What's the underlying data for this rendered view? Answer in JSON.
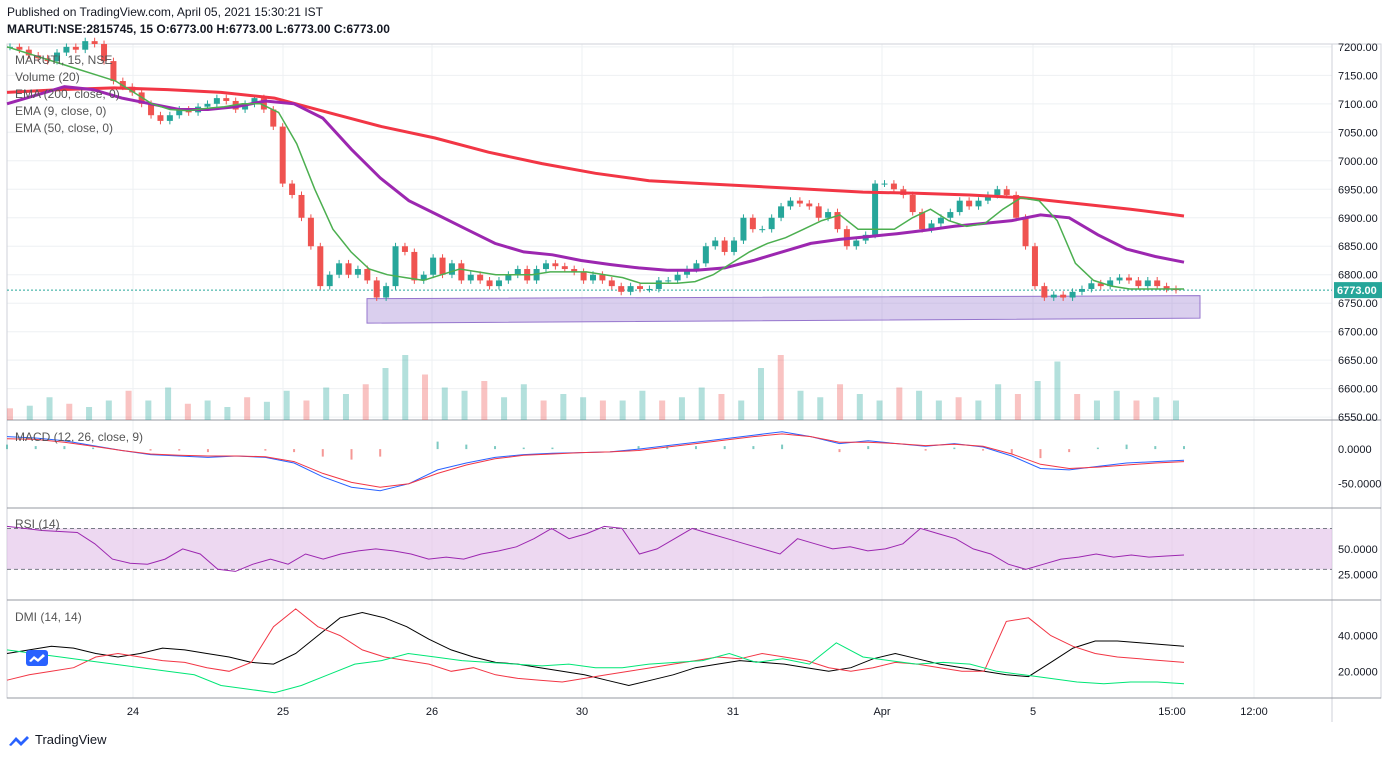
{
  "header": {
    "published": "Published on TradingView.com, April 05, 2021 15:30:21 IST",
    "ohlc": "MARUTI:NSE:2815745, 15 O:6773.00 H:6773.00 L:6773.00 C:6773.00"
  },
  "legend": {
    "symbol": "MARUTI, 15, NSE",
    "volume": "Volume (20)",
    "ema200": "EMA (200, close, 0)",
    "ema9": "EMA (9, close, 0)",
    "ema50": "EMA (50, close, 0)",
    "macd": "MACD (12, 26, close, 9)",
    "rsi": "RSI (14)",
    "dmi": "DMI (14, 14)"
  },
  "footer": {
    "brand": "TradingView"
  },
  "colors": {
    "up": "#26a69a",
    "down": "#ef5350",
    "ema9": "#4caf50",
    "ema50": "#9c27b0",
    "ema200": "#f23645",
    "zone": "#9575cd",
    "rsi_band": "#e1bee7"
  },
  "chart_data": [
    {
      "type": "candlestick",
      "title": "MARUTI, 15, NSE",
      "x_ticks": [
        "24",
        "25",
        "26",
        "30",
        "31",
        "Apr",
        "5",
        "15:00",
        "12:00"
      ],
      "y_ticks": [
        7200,
        7150,
        7100,
        7050,
        7000,
        6950,
        6900,
        6850,
        6800,
        6750,
        6700,
        6650,
        6600,
        6550
      ],
      "y_tick_labels": [
        "7200.00",
        "7150.00",
        "7100.00",
        "7050.00",
        "7000.00",
        "6950.00",
        "6900.00",
        "6850.00",
        "6800.00",
        "6750.00",
        "6700.00",
        "6650.00",
        "6600.00",
        "6550.00"
      ],
      "ylim": [
        6545,
        7205
      ],
      "last_price": 6773,
      "last_price_label": "6773.00",
      "closes": [
        7200,
        7195,
        7185,
        7180,
        7175,
        7190,
        7200,
        7195,
        7210,
        7205,
        7175,
        7140,
        7130,
        7120,
        7100,
        7080,
        7070,
        7080,
        7090,
        7085,
        7095,
        7100,
        7110,
        7105,
        7090,
        7100,
        7110,
        7090,
        7060,
        6960,
        6940,
        6900,
        6850,
        6780,
        6800,
        6820,
        6800,
        6810,
        6790,
        6760,
        6780,
        6850,
        6840,
        6790,
        6800,
        6830,
        6800,
        6820,
        6790,
        6800,
        6790,
        6780,
        6790,
        6800,
        6810,
        6790,
        6810,
        6820,
        6815,
        6810,
        6805,
        6790,
        6800,
        6790,
        6780,
        6770,
        6780,
        6775,
        6775,
        6790,
        6790,
        6800,
        6810,
        6820,
        6850,
        6860,
        6840,
        6860,
        6900,
        6880,
        6880,
        6900,
        6920,
        6930,
        6925,
        6920,
        6900,
        6910,
        6880,
        6850,
        6860,
        6870,
        6960,
        6960,
        6950,
        6940,
        6910,
        6880,
        6890,
        6900,
        6910,
        6930,
        6920,
        6930,
        6940,
        6950,
        6940,
        6900,
        6850,
        6780,
        6760,
        6765,
        6760,
        6770,
        6775,
        6785,
        6780,
        6790,
        6795,
        6790,
        6780,
        6790,
        6780,
        6775,
        6773
      ],
      "ema9": [
        7200,
        7190,
        7180,
        7170,
        7160,
        7150,
        7140,
        7120,
        7100,
        7090,
        7088,
        7092,
        7095,
        7100,
        7100,
        7085,
        7030,
        6950,
        6880,
        6840,
        6810,
        6800,
        6795,
        6790,
        6800,
        6810,
        6805,
        6800,
        6800,
        6800,
        6805,
        6805,
        6805,
        6800,
        6795,
        6785,
        6785,
        6785,
        6788,
        6800,
        6820,
        6840,
        6855,
        6865,
        6880,
        6895,
        6905,
        6880,
        6880,
        6880,
        6900,
        6915,
        6895,
        6885,
        6890,
        6915,
        6935,
        6930,
        6895,
        6820,
        6790,
        6780,
        6775,
        6775,
        6775,
        6775
      ],
      "ema50": [
        7100,
        7115,
        7130,
        7125,
        7110,
        7100,
        7090,
        7090,
        7095,
        7105,
        7100,
        7075,
        7020,
        6970,
        6930,
        6905,
        6880,
        6855,
        6840,
        6835,
        6825,
        6818,
        6812,
        6808,
        6808,
        6812,
        6825,
        6840,
        6855,
        6862,
        6867,
        6872,
        6878,
        6885,
        6890,
        6895,
        6905,
        6900,
        6870,
        6845,
        6832,
        6822
      ],
      "ema200": [
        7120,
        7125,
        7128,
        7125,
        7120,
        7110,
        7085,
        7060,
        7040,
        7015,
        6995,
        6978,
        6965,
        6960,
        6955,
        6950,
        6945,
        6943,
        6940,
        6935,
        6925,
        6915,
        6903
      ],
      "volume_relative": [
        0.18,
        0.22,
        0.35,
        0.25,
        0.2,
        0.3,
        0.45,
        0.3,
        0.5,
        0.25,
        0.3,
        0.2,
        0.35,
        0.28,
        0.45,
        0.3,
        0.5,
        0.4,
        0.55,
        0.8,
        1.0,
        0.7,
        0.5,
        0.45,
        0.6,
        0.35,
        0.55,
        0.3,
        0.4,
        0.35,
        0.3,
        0.3,
        0.45,
        0.3,
        0.35,
        0.5,
        0.4,
        0.3,
        0.8,
        1.0,
        0.45,
        0.35,
        0.55,
        0.4,
        0.3,
        0.5,
        0.45,
        0.3,
        0.35,
        0.3,
        0.55,
        0.4,
        0.6,
        0.9,
        0.4,
        0.3,
        0.45,
        0.3,
        0.35,
        0.3
      ],
      "zone": {
        "from_price_top": 6758,
        "to_price_bottom": 6715,
        "label": ""
      }
    },
    {
      "type": "line",
      "title": "MACD (12, 26, close, 9)",
      "y_ticks": [
        0,
        -50
      ],
      "y_tick_labels": [
        "0.0000",
        "-50.0000"
      ],
      "ylim": [
        -85,
        42
      ],
      "series": [
        {
          "values": [
            18,
            16,
            12,
            5,
            -2,
            -8,
            -10,
            -12,
            -10,
            -12,
            -20,
            -40,
            -55,
            -60,
            -50,
            -30,
            -20,
            -12,
            -8,
            -6,
            -5,
            -4,
            0,
            5,
            10,
            15,
            20,
            25,
            18,
            8,
            12,
            8,
            4,
            8,
            3,
            -10,
            -28,
            -30,
            -25,
            -20,
            -18,
            -16
          ]
        },
        {
          "values": [
            15,
            14,
            10,
            4,
            -2,
            -7,
            -9,
            -10,
            -10,
            -11,
            -18,
            -35,
            -48,
            -55,
            -50,
            -35,
            -23,
            -14,
            -9,
            -7,
            -5,
            -4,
            -2,
            3,
            8,
            13,
            18,
            22,
            18,
            10,
            10,
            8,
            5,
            7,
            4,
            -7,
            -22,
            -28,
            -26,
            -23,
            -20,
            -18
          ]
        }
      ]
    },
    {
      "type": "line",
      "title": "RSI (14)",
      "y_ticks": [
        50,
        25
      ],
      "y_tick_labels": [
        "50.0000",
        "25.0000"
      ],
      "ylim": [
        0,
        90
      ],
      "band": [
        30,
        70
      ],
      "values": [
        72,
        70,
        68,
        67,
        66,
        55,
        40,
        36,
        35,
        40,
        50,
        45,
        30,
        28,
        35,
        40,
        35,
        45,
        40,
        45,
        48,
        50,
        48,
        45,
        40,
        42,
        40,
        45,
        48,
        52,
        60,
        70,
        60,
        65,
        72,
        70,
        45,
        50,
        60,
        70,
        65,
        60,
        55,
        50,
        45,
        60,
        55,
        50,
        52,
        48,
        50,
        55,
        70,
        65,
        60,
        50,
        45,
        35,
        30,
        35,
        40,
        42,
        45,
        42,
        44,
        42,
        43,
        44
      ]
    },
    {
      "type": "line",
      "title": "DMI (14, 14)",
      "y_ticks": [
        40,
        20
      ],
      "y_tick_labels": [
        "40.0000",
        "20.0000"
      ],
      "ylim": [
        5,
        60
      ],
      "series": [
        {
          "values": [
            30,
            32,
            34,
            33,
            30,
            28,
            30,
            33,
            32,
            30,
            28,
            25,
            24,
            30,
            40,
            50,
            53,
            50,
            45,
            38,
            32,
            28,
            25,
            24,
            22,
            20,
            18,
            15,
            12,
            15,
            18,
            22,
            24,
            26,
            25,
            24,
            22,
            20,
            22,
            27,
            30,
            27,
            24,
            22,
            20,
            18,
            17,
            25,
            33,
            37,
            37,
            36,
            35,
            34
          ]
        },
        {
          "values": [
            15,
            18,
            20,
            22,
            28,
            30,
            28,
            26,
            25,
            22,
            20,
            25,
            45,
            55,
            45,
            40,
            32,
            28,
            26,
            24,
            20,
            22,
            18,
            16,
            15,
            14,
            16,
            18,
            20,
            22,
            24,
            26,
            28,
            27,
            30,
            28,
            26,
            22,
            20,
            22,
            25,
            24,
            22,
            20,
            20,
            48,
            50,
            40,
            34,
            30,
            28,
            27,
            26,
            25
          ]
        },
        {
          "values": [
            32,
            30,
            28,
            26,
            24,
            22,
            20,
            18,
            12,
            10,
            8,
            12,
            18,
            24,
            26,
            30,
            28,
            26,
            25,
            24,
            23,
            24,
            22,
            22,
            24,
            25,
            26,
            30,
            25,
            27,
            24,
            36,
            28,
            26,
            24,
            25,
            24,
            20,
            18,
            16,
            14,
            13,
            14,
            14,
            13
          ]
        }
      ]
    }
  ]
}
